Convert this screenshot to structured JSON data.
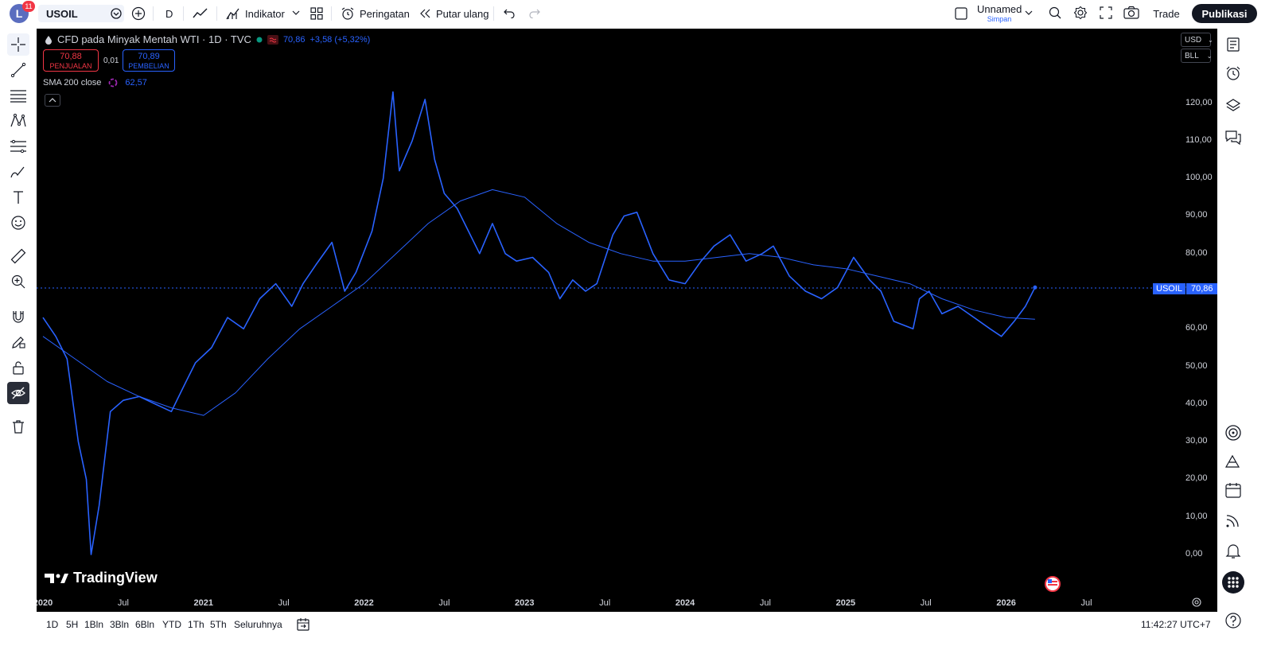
{
  "header": {
    "avatar_letter": "L",
    "notification_count": "11",
    "symbol": "USOIL",
    "interval": "D",
    "indicators_label": "Indikator",
    "alerts_label": "Peringatan",
    "replay_label": "Putar ulang",
    "layout_name": "Unnamed",
    "layout_status": "Simpan",
    "trade_label": "Trade",
    "publish_label": "Publikasi"
  },
  "legend": {
    "title": "CFD pada Minyak Mentah WTI · 1D · TVC",
    "price": "70,86",
    "change": "+3,58 (+5,32%)",
    "sell_price": "70,88",
    "sell_label": "PENJUALAN",
    "spread": "0,01",
    "buy_price": "70,89",
    "buy_label": "PEMBELIAN",
    "sma_label": "SMA 200 close",
    "sma_value": "62,57",
    "collapse_icon": "chevron-up-icon"
  },
  "scale": {
    "currency": "USD",
    "unit": "BLL"
  },
  "last_price": {
    "symbol": "USOIL",
    "value": "70,86"
  },
  "colors": {
    "price_line": "#2962ff",
    "sma_line": "#2962ff",
    "background": "#000000",
    "sell": "#f23645",
    "buy": "#2962ff"
  },
  "chart_data": {
    "type": "line",
    "y_ticks": [
      "120,00",
      "110,00",
      "100,00",
      "90,00",
      "80,00",
      "70,00",
      "60,00",
      "50,00",
      "40,00",
      "30,00",
      "20,00",
      "10,00",
      "0,00"
    ],
    "x_ticks": [
      {
        "label": "2020",
        "bold": true
      },
      {
        "label": "Jul",
        "bold": false
      },
      {
        "label": "2021",
        "bold": true
      },
      {
        "label": "Jul",
        "bold": false
      },
      {
        "label": "2022",
        "bold": true
      },
      {
        "label": "Jul",
        "bold": false
      },
      {
        "label": "2023",
        "bold": true
      },
      {
        "label": "Jul",
        "bold": false
      },
      {
        "label": "2024",
        "bold": true
      },
      {
        "label": "Jul",
        "bold": false
      },
      {
        "label": "2025",
        "bold": true
      },
      {
        "label": "Jul",
        "bold": false
      },
      {
        "label": "2026",
        "bold": true
      },
      {
        "label": "Jul",
        "bold": false
      }
    ],
    "ylim": [
      0,
      125
    ],
    "series": [
      {
        "values_time": [
          2020.0,
          2020.08,
          2020.15,
          2020.22,
          2020.27,
          2020.3,
          2020.35,
          2020.42,
          2020.5,
          2020.6,
          2020.7,
          2020.8,
          2020.88,
          2020.95,
          2021.05,
          2021.15,
          2021.25,
          2021.35,
          2021.45,
          2021.55,
          2021.62,
          2021.7,
          2021.8,
          2021.88,
          2021.95,
          2022.05,
          2022.12,
          2022.18,
          2022.22,
          2022.3,
          2022.38,
          2022.44,
          2022.5,
          2022.58,
          2022.65,
          2022.72,
          2022.8,
          2022.88,
          2022.95,
          2023.05,
          2023.15,
          2023.22,
          2023.3,
          2023.38,
          2023.45,
          2023.55,
          2023.62,
          2023.7,
          2023.8,
          2023.9,
          2024.0,
          2024.1,
          2024.18,
          2024.28,
          2024.38,
          2024.48,
          2024.55,
          2024.65,
          2024.75,
          2024.85,
          2024.95,
          2025.05,
          2025.15,
          2025.22,
          2025.3,
          2025.42,
          2025.46,
          2025.52,
          2025.6,
          2025.7,
          2025.8,
          2025.9,
          2025.97,
          2026.05,
          2026.12,
          2026.18
        ],
        "values": [
          63,
          58,
          52,
          30,
          20,
          0,
          13,
          38,
          41,
          42,
          40,
          38,
          45,
          51,
          55,
          63,
          60,
          68,
          72,
          66,
          72,
          77,
          83,
          70,
          75,
          86,
          100,
          123,
          102,
          110,
          121,
          105,
          96,
          92,
          86,
          80,
          88,
          80,
          78,
          79,
          75,
          68,
          73,
          70,
          72,
          85,
          90,
          91,
          80,
          73,
          72,
          78,
          82,
          85,
          78,
          80,
          82,
          74,
          70,
          68,
          71,
          79,
          73,
          70,
          62,
          60,
          68,
          70,
          64,
          66,
          63,
          60,
          58,
          62,
          66,
          71
        ]
      },
      {
        "name": "SMA 200 close",
        "values_time": [
          2020.0,
          2020.2,
          2020.4,
          2020.6,
          2020.8,
          2021.0,
          2021.2,
          2021.4,
          2021.6,
          2021.8,
          2022.0,
          2022.2,
          2022.4,
          2022.6,
          2022.8,
          2023.0,
          2023.2,
          2023.4,
          2023.6,
          2023.8,
          2024.0,
          2024.2,
          2024.4,
          2024.6,
          2024.8,
          2025.0,
          2025.2,
          2025.4,
          2025.6,
          2025.8,
          2026.0,
          2026.18
        ],
        "values": [
          58,
          52,
          46,
          42,
          39,
          37,
          43,
          52,
          60,
          66,
          72,
          80,
          88,
          94,
          97,
          95,
          88,
          83,
          80,
          78,
          78,
          79,
          80,
          79,
          77,
          76,
          74,
          72,
          68,
          65,
          63,
          62.57
        ]
      }
    ]
  },
  "bottom": {
    "ranges": [
      "1D",
      "5H",
      "1Bln",
      "3Bln",
      "6Bln",
      "YTD",
      "1Th",
      "5Th",
      "Seluruhnya"
    ],
    "clock": "11:42:27 UTC+7"
  },
  "branding": {
    "logo_text": "TradingView"
  }
}
